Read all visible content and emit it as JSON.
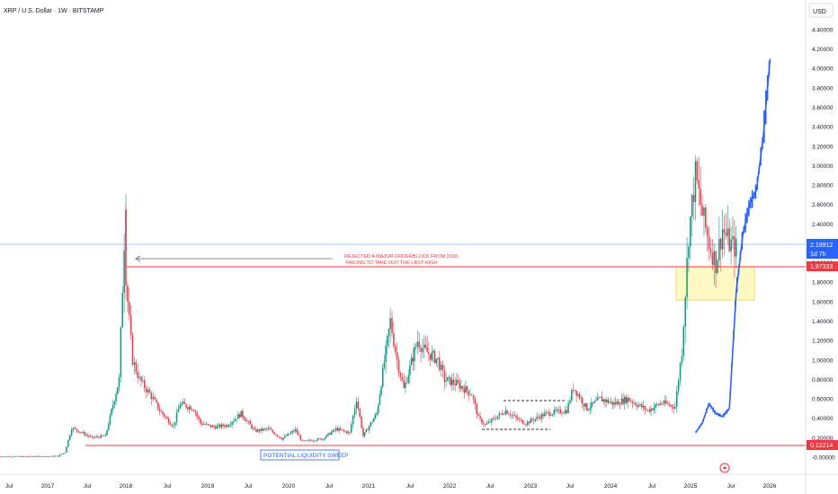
{
  "header": {
    "title": "XRP / U.S. Dollar · 1W · BITSTAMP",
    "currency": "USD"
  },
  "annotations": {
    "rejected_line1": "REJECTED A MAJOR ORDERBLOCK FROM 2018,",
    "rejected_line2": "FAILING TO TAKE OUT THE LAST HIGH",
    "liquidity_sweep": "POTENTIAL LIQUIDITY SWEEP"
  },
  "price_tags": {
    "current": {
      "value": "2.19912",
      "countdown": "1d 7h",
      "color": "#2962ff"
    },
    "resistance": {
      "value": "1.97333",
      "color": "#f23645"
    },
    "support": {
      "value": "0.12214",
      "color": "#f23645"
    }
  },
  "colors": {
    "up": "#089981",
    "down": "#f23645",
    "projection": "#2962ff",
    "zone_fill": "#fff9c4",
    "level_line": "#f23645",
    "current_line": "#2962ff"
  },
  "chart_data": {
    "type": "candlestick",
    "symbol": "XRP / U.S. Dollar",
    "interval": "1W",
    "exchange": "BITSTAMP",
    "y_axis": {
      "ticks": [
        "4.40000",
        "4.20000",
        "4.00000",
        "3.80000",
        "3.60000",
        "3.40000",
        "3.20000",
        "3.00000",
        "2.80000",
        "2.60000",
        "2.40000",
        "2.20000",
        "2.00000",
        "1.80000",
        "1.60000",
        "1.40000",
        "1.20000",
        "1.00000",
        "0.80000",
        "0.60000",
        "0.40000",
        "0.20000",
        "-0.00000"
      ],
      "ylim": [
        -0.05,
        4.5
      ]
    },
    "x_axis": {
      "ticks": [
        "Jul",
        "2017",
        "Jul",
        "2018",
        "Jul",
        "2019",
        "Jul",
        "2020",
        "Jul",
        "2021",
        "Jul",
        "2022",
        "Jul",
        "2023",
        "Jul",
        "2024",
        "Jul",
        "2025",
        "Jul",
        "2026"
      ],
      "start": "2016-06",
      "end": "2026-09"
    },
    "levels": [
      {
        "name": "resistance",
        "value": 1.97333
      },
      {
        "name": "support",
        "value": 0.12214
      },
      {
        "name": "current",
        "value": 2.19912
      }
    ],
    "zones": [
      {
        "name": "orderblock",
        "from": "2024-11",
        "to": "2025-10",
        "low": 1.62,
        "high": 1.97
      }
    ],
    "price_path": [
      [
        "2016-06",
        0.006
      ],
      [
        "2016-12",
        0.006
      ],
      [
        "2017-03",
        0.01
      ],
      [
        "2017-04",
        0.05
      ],
      [
        "2017-05",
        0.3
      ],
      [
        "2017-06",
        0.27
      ],
      [
        "2017-08",
        0.2
      ],
      [
        "2017-10",
        0.22
      ],
      [
        "2017-12",
        0.8
      ],
      [
        "2018-01",
        2.7
      ],
      [
        "2018-01",
        1.8
      ],
      [
        "2018-02",
        1.0
      ],
      [
        "2018-03",
        0.8
      ],
      [
        "2018-04",
        0.7
      ],
      [
        "2018-05",
        0.6
      ],
      [
        "2018-06",
        0.48
      ],
      [
        "2018-08",
        0.32
      ],
      [
        "2018-09",
        0.55
      ],
      [
        "2018-11",
        0.5
      ],
      [
        "2018-12",
        0.35
      ],
      [
        "2019-02",
        0.31
      ],
      [
        "2019-04",
        0.33
      ],
      [
        "2019-06",
        0.45
      ],
      [
        "2019-08",
        0.27
      ],
      [
        "2019-10",
        0.29
      ],
      [
        "2019-12",
        0.19
      ],
      [
        "2020-02",
        0.28
      ],
      [
        "2020-03",
        0.16
      ],
      [
        "2020-06",
        0.19
      ],
      [
        "2020-08",
        0.29
      ],
      [
        "2020-10",
        0.25
      ],
      [
        "2020-11",
        0.6
      ],
      [
        "2020-12",
        0.22
      ],
      [
        "2021-02",
        0.45
      ],
      [
        "2021-04",
        1.4
      ],
      [
        "2021-05",
        1.0
      ],
      [
        "2021-06",
        0.7
      ],
      [
        "2021-08",
        1.2
      ],
      [
        "2021-09",
        1.1
      ],
      [
        "2021-11",
        1.0
      ],
      [
        "2021-12",
        0.8
      ],
      [
        "2022-02",
        0.75
      ],
      [
        "2022-04",
        0.65
      ],
      [
        "2022-05",
        0.4
      ],
      [
        "2022-06",
        0.33
      ],
      [
        "2022-09",
        0.48
      ],
      [
        "2022-11",
        0.38
      ],
      [
        "2022-12",
        0.35
      ],
      [
        "2023-03",
        0.45
      ],
      [
        "2023-06",
        0.48
      ],
      [
        "2023-07",
        0.72
      ],
      [
        "2023-09",
        0.5
      ],
      [
        "2023-11",
        0.6
      ],
      [
        "2024-01",
        0.55
      ],
      [
        "2024-03",
        0.6
      ],
      [
        "2024-06",
        0.48
      ],
      [
        "2024-08",
        0.56
      ],
      [
        "2024-10",
        0.52
      ],
      [
        "2024-11",
        1.1
      ],
      [
        "2024-12",
        2.3
      ],
      [
        "2025-01",
        2.9
      ],
      [
        "2025-02",
        2.5
      ],
      [
        "2025-03",
        2.2
      ],
      [
        "2025-04",
        2.0
      ],
      [
        "2025-05",
        2.35
      ],
      [
        "2025-06",
        2.2
      ],
      [
        "2025-07",
        2.15
      ]
    ],
    "projection_path": [
      [
        "2025-01",
        0.25
      ],
      [
        "2025-02",
        0.35
      ],
      [
        "2025-03",
        0.55
      ],
      [
        "2025-04",
        0.45
      ],
      [
        "2025-05",
        0.42
      ],
      [
        "2025-06",
        0.5
      ],
      [
        "2025-07",
        1.7
      ],
      [
        "2025-08",
        2.3
      ],
      [
        "2025-09",
        2.6
      ],
      [
        "2025-10",
        2.75
      ],
      [
        "2025-11",
        3.3
      ],
      [
        "2025-12",
        4.1
      ]
    ]
  }
}
